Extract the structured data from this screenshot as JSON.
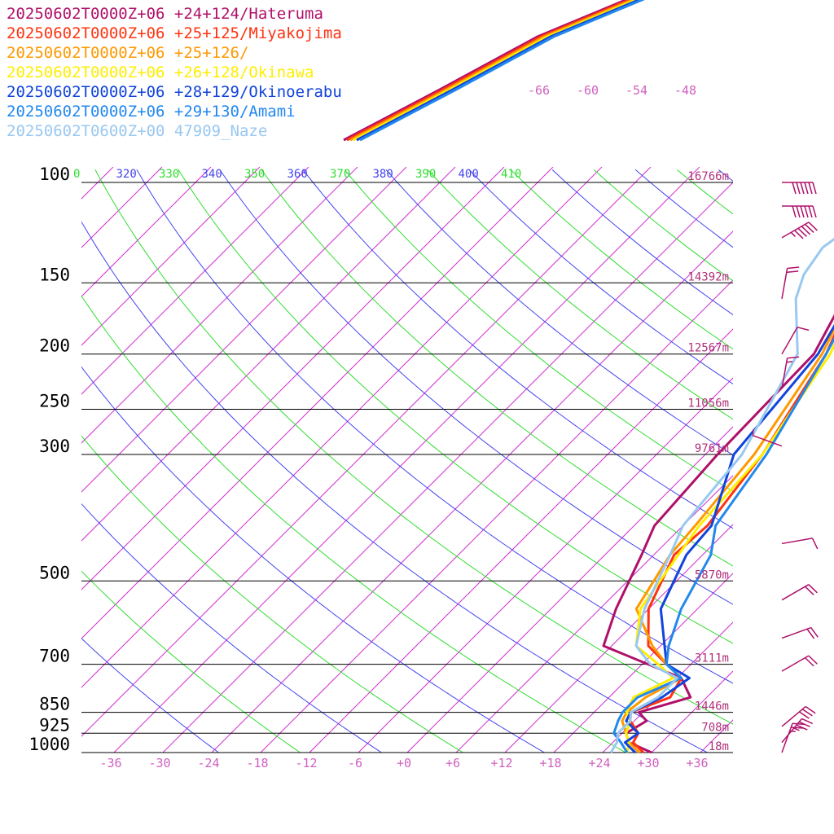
{
  "chart_data": {
    "type": "line",
    "title": "",
    "xlabel": "",
    "ylabel": "",
    "xlim": [
      -40,
      40
    ],
    "pressure_range": [
      100,
      1000
    ],
    "y_scale": "log-pressure",
    "legend_placement": "top-left",
    "x_ticks": [
      "-36",
      "-30",
      "-24",
      "-18",
      "-12",
      "-6",
      "+0",
      "+6",
      "+12",
      "+18",
      "+24",
      "+30",
      "+36"
    ],
    "pressure_levels": [
      {
        "p": 100,
        "label": "100",
        "height": "16766m"
      },
      {
        "p": 150,
        "label": "150",
        "height": "14392m"
      },
      {
        "p": 200,
        "label": "200",
        "height": "12567m"
      },
      {
        "p": 250,
        "label": "250",
        "height": "11056m"
      },
      {
        "p": 300,
        "label": "300",
        "height": "9761m"
      },
      {
        "p": 500,
        "label": "500",
        "height": "5870m"
      },
      {
        "p": 700,
        "label": "700",
        "height": "3111m"
      },
      {
        "p": 850,
        "label": "850",
        "height": "1446m"
      },
      {
        "p": 925,
        "label": "925",
        "height": "708m"
      },
      {
        "p": 1000,
        "label": "1000",
        "height": "18m"
      }
    ],
    "mixing_ratio_labels": [
      "-66",
      "-60",
      "-54",
      "-48"
    ],
    "theta_labels": [
      {
        "value": "0",
        "color": "#30dd30"
      },
      {
        "value": "320",
        "color": "#4444ee"
      },
      {
        "value": "330",
        "color": "#30dd30"
      },
      {
        "value": "340",
        "color": "#4444ee"
      },
      {
        "value": "350",
        "color": "#30dd30"
      },
      {
        "value": "360",
        "color": "#4444ee"
      },
      {
        "value": "370",
        "color": "#30dd30"
      },
      {
        "value": "380",
        "color": "#4444ee"
      },
      {
        "value": "390",
        "color": "#30dd30"
      },
      {
        "value": "400",
        "color": "#4444ee"
      },
      {
        "value": "410",
        "color": "#30dd30"
      }
    ],
    "series": [
      {
        "name": "20250602T0000Z+06 +24+124/Hateruma",
        "color": "#b0106a",
        "points": [
          [
            60,
            1000
          ],
          [
            52,
            960
          ],
          [
            49,
            925
          ],
          [
            51,
            880
          ],
          [
            47,
            850
          ],
          [
            56,
            800
          ],
          [
            49,
            740
          ],
          [
            22,
            650
          ],
          [
            16,
            560
          ],
          [
            9,
            450
          ],
          [
            5,
            400
          ],
          [
            3,
            300
          ],
          [
            2,
            200
          ],
          [
            -8,
            140
          ],
          [
            -16,
            115
          ],
          [
            -13,
            100
          ]
        ]
      },
      {
        "name": "20250602T0000Z+06 +25+125/Miyakojima",
        "color": "#ff3311",
        "points": [
          [
            58,
            1000
          ],
          [
            53,
            960
          ],
          [
            52,
            925
          ],
          [
            47,
            880
          ],
          [
            45,
            850
          ],
          [
            51,
            800
          ],
          [
            49,
            740
          ],
          [
            42,
            700
          ],
          [
            33,
            650
          ],
          [
            24,
            560
          ],
          [
            17,
            450
          ],
          [
            18,
            400
          ],
          [
            14,
            300
          ],
          [
            5,
            200
          ],
          [
            -7,
            140
          ],
          [
            -17,
            108
          ],
          [
            -5,
            100
          ]
        ]
      },
      {
        "name": "20250602T0000Z+06 +25+126/",
        "color": "#ff9900",
        "points": [
          [
            57,
            1000
          ],
          [
            52,
            960
          ],
          [
            49,
            925
          ],
          [
            45,
            880
          ],
          [
            44,
            850
          ],
          [
            45,
            800
          ],
          [
            49,
            740
          ],
          [
            42,
            700
          ],
          [
            34,
            650
          ],
          [
            21,
            560
          ],
          [
            16,
            450
          ],
          [
            15,
            400
          ],
          [
            12,
            300
          ],
          [
            4,
            200
          ],
          [
            -7,
            140
          ],
          [
            -14,
            115
          ],
          [
            -8,
            100
          ]
        ]
      },
      {
        "name": "20250602T0000Z+06 +26+128/Okinawa",
        "color": "#ffee00",
        "points": [
          [
            54,
            1000
          ],
          [
            52,
            960
          ],
          [
            49,
            925
          ],
          [
            47,
            880
          ],
          [
            44,
            850
          ],
          [
            42,
            800
          ],
          [
            47,
            740
          ],
          [
            40,
            700
          ],
          [
            30,
            650
          ],
          [
            22,
            560
          ],
          [
            18,
            450
          ],
          [
            16,
            400
          ],
          [
            14,
            300
          ],
          [
            6,
            200
          ],
          [
            -6,
            140
          ],
          [
            -12,
            110
          ],
          [
            -9,
            100
          ]
        ]
      },
      {
        "name": "20250602T0000Z+06 +28+129/Okinoerabu",
        "color": "#1144dd",
        "points": [
          [
            56,
            1000
          ],
          [
            51,
            960
          ],
          [
            52,
            925
          ],
          [
            46,
            880
          ],
          [
            45,
            850
          ],
          [
            49,
            800
          ],
          [
            51,
            740
          ],
          [
            42,
            700
          ],
          [
            37,
            650
          ],
          [
            27,
            560
          ],
          [
            20,
            450
          ],
          [
            19,
            400
          ],
          [
            7,
            300
          ],
          [
            3,
            200
          ],
          [
            -6,
            140
          ],
          [
            -12,
            115
          ],
          [
            -9,
            100
          ]
        ]
      },
      {
        "name": "20250602T0000Z+06 +29+130/Amami",
        "color": "#2288ee",
        "points": [
          [
            54,
            1000
          ],
          [
            50,
            960
          ],
          [
            46,
            925
          ],
          [
            44,
            880
          ],
          [
            43,
            850
          ],
          [
            43,
            800
          ],
          [
            49,
            740
          ],
          [
            42,
            700
          ],
          [
            38,
            650
          ],
          [
            32,
            560
          ],
          [
            26,
            450
          ],
          [
            20,
            400
          ],
          [
            15,
            300
          ],
          [
            5,
            200
          ],
          [
            -5,
            140
          ],
          [
            -10,
            115
          ],
          [
            -5,
            100
          ]
        ]
      },
      {
        "name": "20250602T0600Z+00 47909_Naze",
        "color": "#99c8f0",
        "points": [
          [
            50,
            1000
          ],
          [
            49,
            960
          ],
          [
            47,
            925
          ],
          [
            47,
            880
          ],
          [
            45,
            850
          ],
          [
            48,
            800
          ],
          [
            48,
            740
          ],
          [
            38,
            700
          ],
          [
            30,
            650
          ],
          [
            23,
            560
          ],
          [
            16,
            450
          ],
          [
            12,
            400
          ],
          [
            9,
            300
          ],
          [
            -2,
            200
          ],
          [
            -16,
            160
          ],
          [
            -20,
            145
          ],
          [
            -22,
            130
          ],
          [
            -16,
            100
          ]
        ]
      }
    ],
    "wind_barbs": [
      {
        "p": 100,
        "dir_deg": 270,
        "speed_kt": 60,
        "color": "#b0106a"
      },
      {
        "p": 110,
        "dir_deg": 270,
        "speed_kt": 60,
        "color": "#b0106a"
      },
      {
        "p": 125,
        "dir_deg": 240,
        "speed_kt": 55,
        "color": "#b0106a"
      },
      {
        "p": 160,
        "dir_deg": 190,
        "speed_kt": 20,
        "color": "#b0106a"
      },
      {
        "p": 200,
        "dir_deg": 210,
        "speed_kt": 10,
        "color": "#b0106a"
      },
      {
        "p": 230,
        "dir_deg": 190,
        "speed_kt": 15,
        "color": "#b0106a"
      },
      {
        "p": 290,
        "dir_deg": 110,
        "speed_kt": 5,
        "color": "#b0106a"
      },
      {
        "p": 430,
        "dir_deg": 260,
        "speed_kt": 10,
        "color": "#b0106a"
      },
      {
        "p": 540,
        "dir_deg": 240,
        "speed_kt": 20,
        "color": "#b0106a"
      },
      {
        "p": 630,
        "dir_deg": 250,
        "speed_kt": 20,
        "color": "#b0106a"
      },
      {
        "p": 720,
        "dir_deg": 240,
        "speed_kt": 20,
        "color": "#b0106a"
      },
      {
        "p": 900,
        "dir_deg": 230,
        "speed_kt": 30,
        "color": "#b0106a"
      },
      {
        "p": 960,
        "dir_deg": 220,
        "speed_kt": 35,
        "color": "#b0106a"
      },
      {
        "p": 1000,
        "dir_deg": 200,
        "speed_kt": 25,
        "color": "#b0106a"
      }
    ]
  }
}
